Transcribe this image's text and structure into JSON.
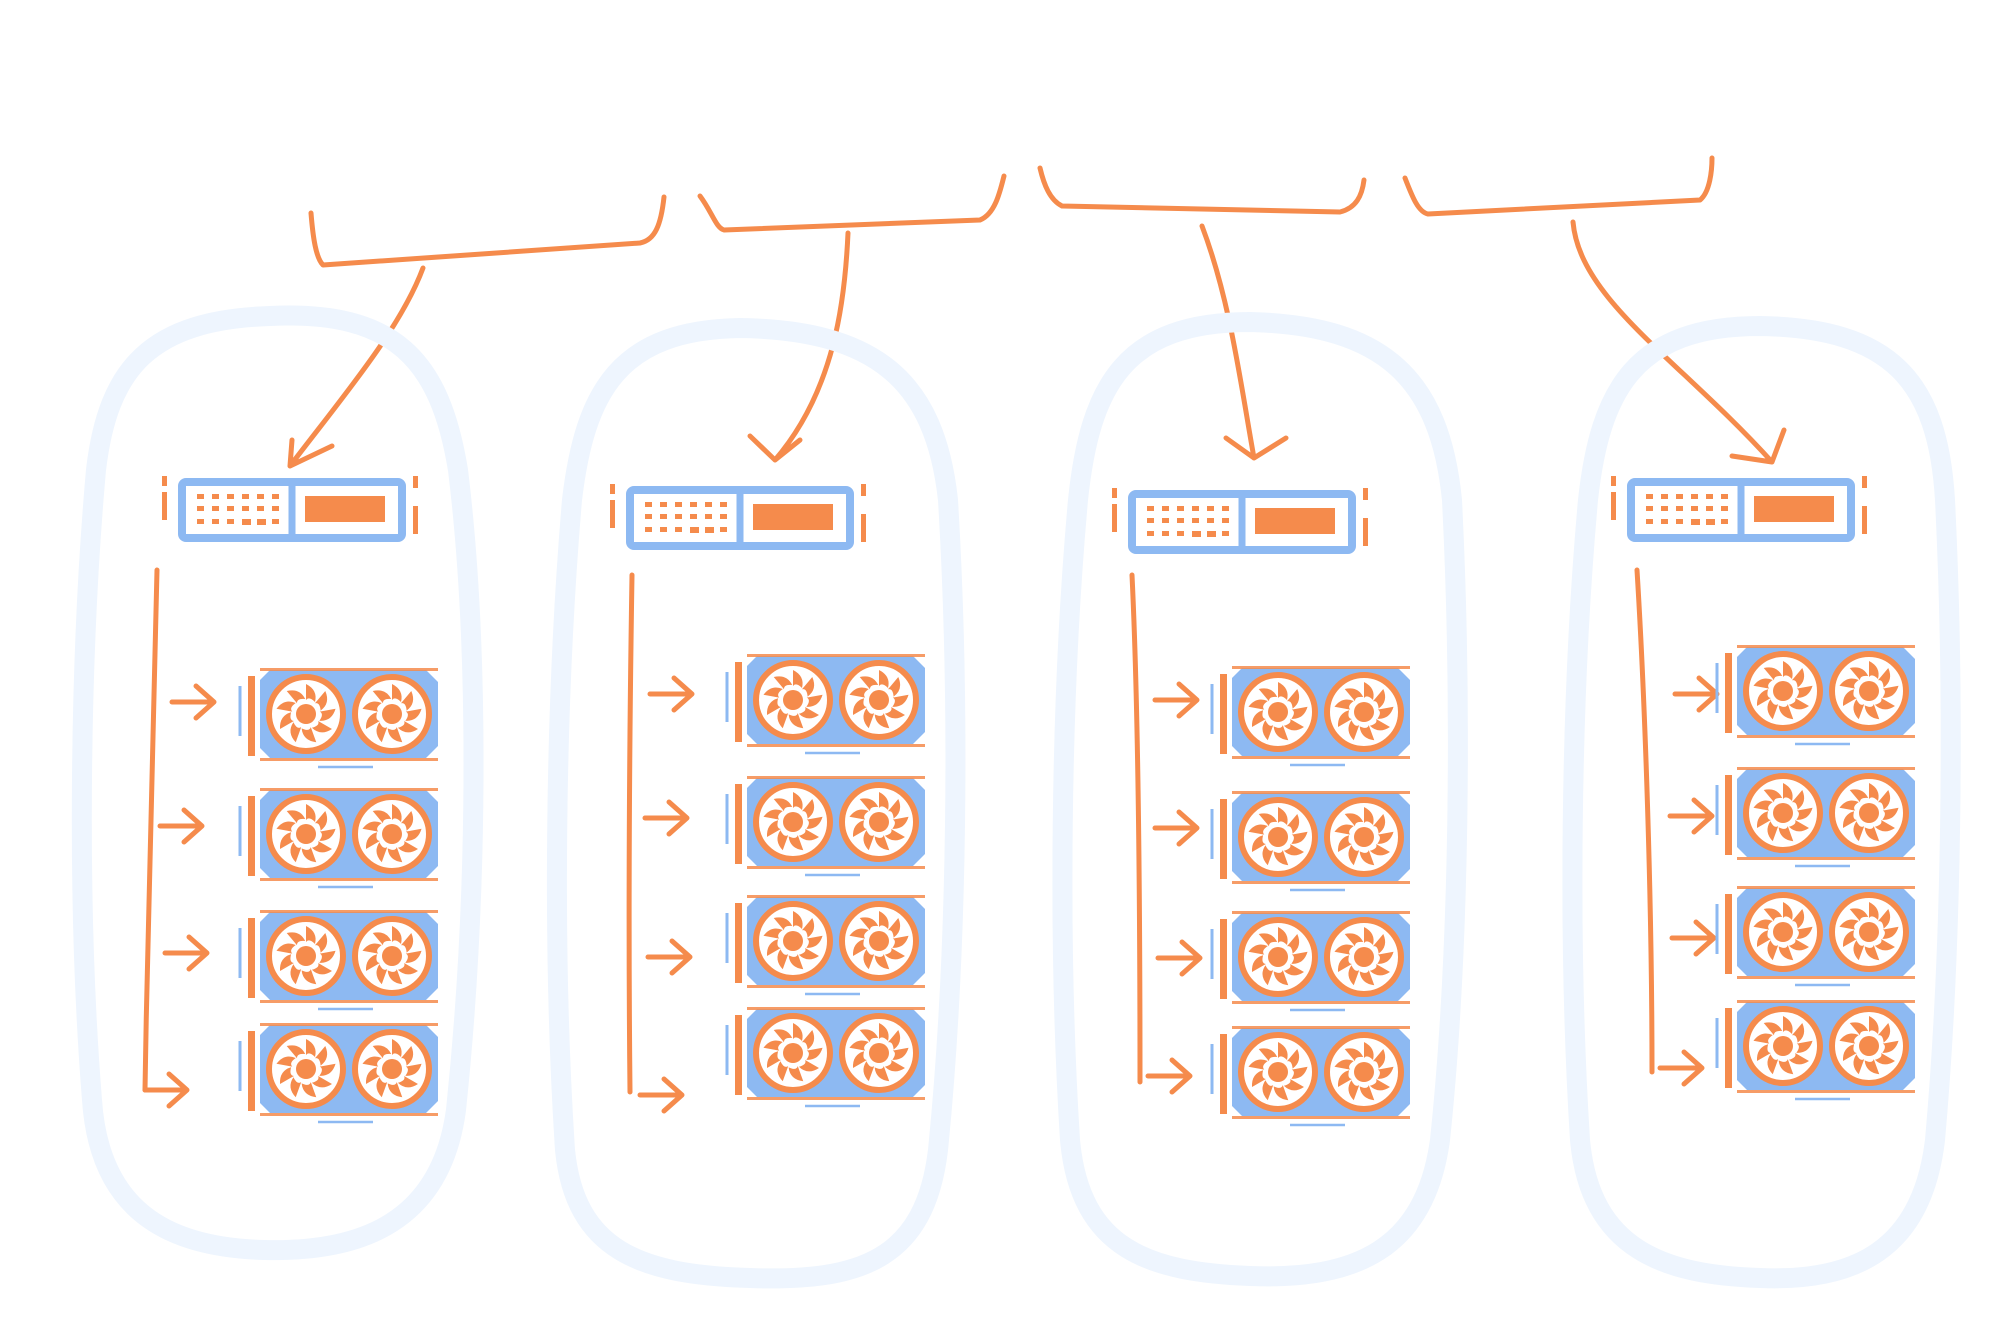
{
  "diagram": {
    "nodes": [
      {
        "id": "node-1",
        "server": {
          "icon": "server-icon"
        },
        "gpus": [
          {
            "icon": "gpu-icon"
          },
          {
            "icon": "gpu-icon"
          },
          {
            "icon": "gpu-icon"
          },
          {
            "icon": "gpu-icon"
          }
        ]
      },
      {
        "id": "node-2",
        "server": {
          "icon": "server-icon"
        },
        "gpus": [
          {
            "icon": "gpu-icon"
          },
          {
            "icon": "gpu-icon"
          },
          {
            "icon": "gpu-icon"
          },
          {
            "icon": "gpu-icon"
          }
        ]
      },
      {
        "id": "node-3",
        "server": {
          "icon": "server-icon"
        },
        "gpus": [
          {
            "icon": "gpu-icon"
          },
          {
            "icon": "gpu-icon"
          },
          {
            "icon": "gpu-icon"
          },
          {
            "icon": "gpu-icon"
          }
        ]
      },
      {
        "id": "node-4",
        "server": {
          "icon": "server-icon"
        },
        "gpus": [
          {
            "icon": "gpu-icon"
          },
          {
            "icon": "gpu-icon"
          },
          {
            "icon": "gpu-icon"
          },
          {
            "icon": "gpu-icon"
          }
        ]
      }
    ],
    "colors": {
      "accent_orange": "#F58B4C",
      "device_blue": "#8DB9F2",
      "device_light_blue": "#B9D5F8",
      "group_outline": "#EEF5FE",
      "background": "#FFFFFF"
    }
  }
}
